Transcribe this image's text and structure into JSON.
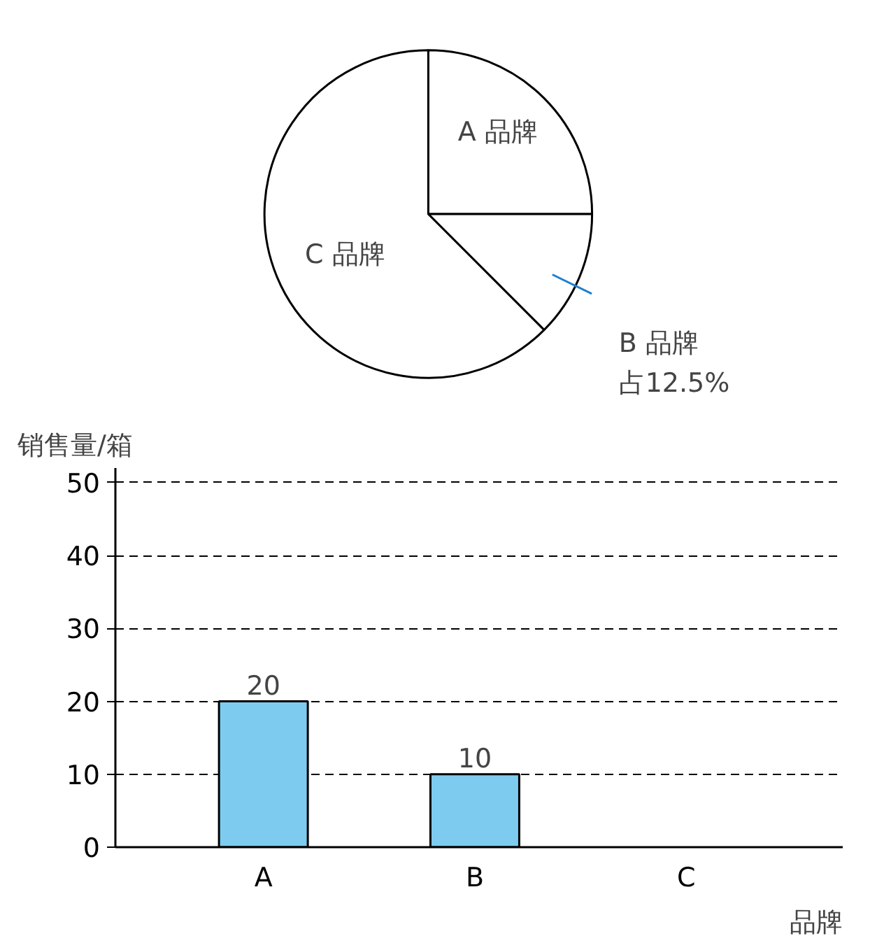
{
  "chart_data": [
    {
      "type": "pie",
      "categories": [
        "A 品牌",
        "B 品牌",
        "C 品牌"
      ],
      "values": [
        25,
        12.5,
        62.5
      ],
      "colors": [
        "#ffffff",
        "#ffffff",
        "#ffffff"
      ],
      "value_labels": [
        null,
        "占12.5%",
        null
      ]
    },
    {
      "type": "bar",
      "categories": [
        "A",
        "B",
        "C"
      ],
      "values": [
        20,
        10,
        null
      ],
      "color": "#7ecbf0",
      "ylim": [
        0,
        52
      ],
      "yticks": [
        0,
        10,
        20,
        30,
        40,
        50
      ],
      "grid": "y",
      "line_style": "dashed",
      "data_labels": true,
      "xlabel": "品牌",
      "ylabel": "销售量/箱"
    }
  ]
}
